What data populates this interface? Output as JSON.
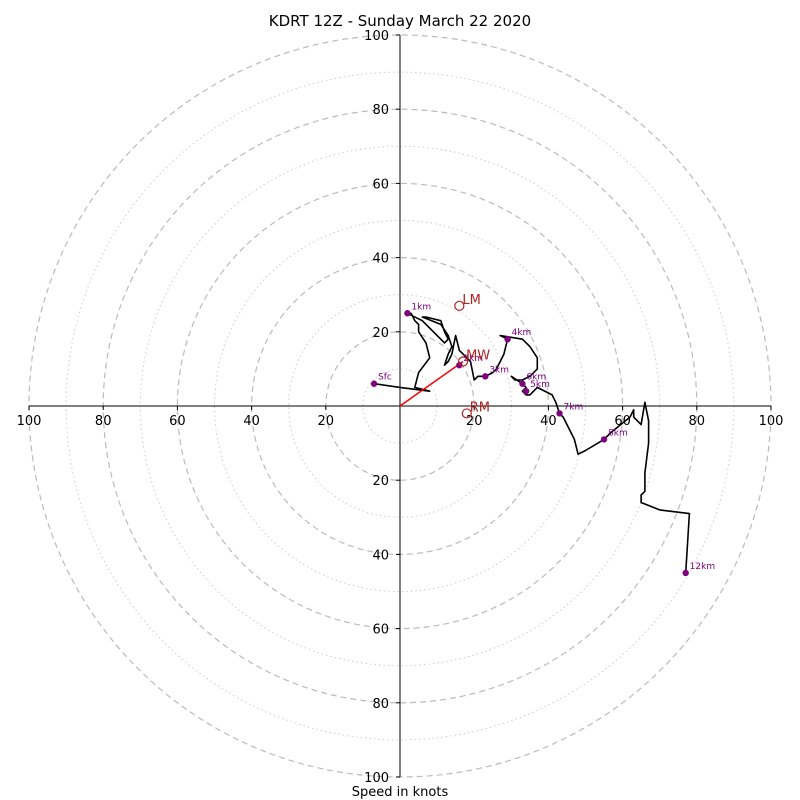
{
  "chart_data": {
    "type": "hodograph",
    "title": "KDRT 12Z - Sunday March 22 2020",
    "xlabel": "Speed in knots",
    "ylabel": "",
    "xlim": [
      -100,
      100
    ],
    "ylim": [
      -100,
      100
    ],
    "tick_labels": [
      "100",
      "80",
      "60",
      "40",
      "20",
      "20",
      "40",
      "60",
      "80",
      "100"
    ],
    "tick_values": [
      -100,
      -80,
      -60,
      -40,
      -20,
      20,
      40,
      60,
      80,
      100
    ],
    "rings_major": [
      20,
      40,
      60,
      80,
      100
    ],
    "rings_minor": [
      10,
      30,
      50,
      70,
      90
    ],
    "grid": true,
    "colors": {
      "trace": "#000000",
      "height_marker": "#800080",
      "motion": "#b22222",
      "shear_vector": "#ff0000",
      "grid": "#bbbbbb",
      "axes": "#000000"
    },
    "trace": [
      [
        -7,
        6
      ],
      [
        0,
        5
      ],
      [
        8,
        4
      ],
      [
        4,
        5
      ],
      [
        5,
        9
      ],
      [
        8,
        13
      ],
      [
        7,
        17
      ],
      [
        5,
        20
      ],
      [
        5,
        22
      ],
      [
        4,
        23
      ],
      [
        3,
        25
      ],
      [
        2,
        25
      ],
      [
        6,
        23
      ],
      [
        9,
        20
      ],
      [
        11,
        18
      ],
      [
        12,
        17
      ],
      [
        13,
        18
      ],
      [
        12,
        20
      ],
      [
        11,
        23
      ],
      [
        7,
        24
      ],
      [
        6,
        24
      ],
      [
        11,
        22
      ],
      [
        13,
        19
      ],
      [
        14,
        16
      ],
      [
        13,
        14
      ],
      [
        12,
        11
      ],
      [
        13,
        12
      ],
      [
        14,
        14
      ],
      [
        15,
        19
      ],
      [
        16,
        15
      ],
      [
        17,
        14
      ],
      [
        18,
        13
      ],
      [
        19,
        12
      ],
      [
        20,
        7
      ],
      [
        21,
        8
      ],
      [
        22,
        8
      ],
      [
        23,
        8
      ],
      [
        25,
        9
      ],
      [
        26,
        10
      ],
      [
        28,
        14
      ],
      [
        29,
        18
      ],
      [
        27,
        19
      ],
      [
        33,
        18
      ],
      [
        35,
        16
      ],
      [
        37,
        13
      ],
      [
        37,
        10
      ],
      [
        35,
        8
      ],
      [
        33,
        7
      ],
      [
        31,
        7
      ],
      [
        30,
        8
      ],
      [
        33,
        6
      ],
      [
        34,
        5
      ],
      [
        33,
        4
      ],
      [
        34,
        3
      ],
      [
        35,
        3
      ],
      [
        36,
        4
      ],
      [
        37,
        5
      ],
      [
        41,
        3
      ],
      [
        42,
        1
      ],
      [
        43,
        -2
      ],
      [
        44,
        -3
      ],
      [
        47,
        -9
      ],
      [
        48,
        -13
      ],
      [
        50,
        -12
      ],
      [
        55,
        -9
      ],
      [
        57,
        -7
      ],
      [
        62,
        -3
      ],
      [
        63,
        -1
      ],
      [
        63,
        -3
      ],
      [
        65,
        -5
      ],
      [
        66,
        1
      ],
      [
        67,
        -4
      ],
      [
        67,
        -10
      ],
      [
        66,
        -18
      ],
      [
        66,
        -23
      ],
      [
        65,
        -24
      ],
      [
        65,
        -26
      ],
      [
        70,
        -28
      ],
      [
        78,
        -29
      ],
      [
        77,
        -45
      ]
    ],
    "height_markers": [
      {
        "label": "Sfc",
        "x": -7,
        "y": 6
      },
      {
        "label": "1km",
        "x": 2,
        "y": 25
      },
      {
        "label": "2km",
        "x": 16,
        "y": 11
      },
      {
        "label": "3km",
        "x": 23,
        "y": 8
      },
      {
        "label": "4km",
        "x": 29,
        "y": 18
      },
      {
        "label": "5km",
        "x": 34,
        "y": 4
      },
      {
        "label": "6km",
        "x": 33,
        "y": 6
      },
      {
        "label": "7km",
        "x": 43,
        "y": -2
      },
      {
        "label": "8km",
        "x": 55,
        "y": -9
      },
      {
        "label": "12km",
        "x": 77,
        "y": -45
      }
    ],
    "storm_motion": [
      {
        "label": "LM",
        "x": 16,
        "y": 27
      },
      {
        "label": "MW",
        "x": 17,
        "y": 12
      },
      {
        "label": "RM",
        "x": 18,
        "y": -2
      }
    ],
    "shear_vector": {
      "x": 17,
      "y": 12
    }
  }
}
